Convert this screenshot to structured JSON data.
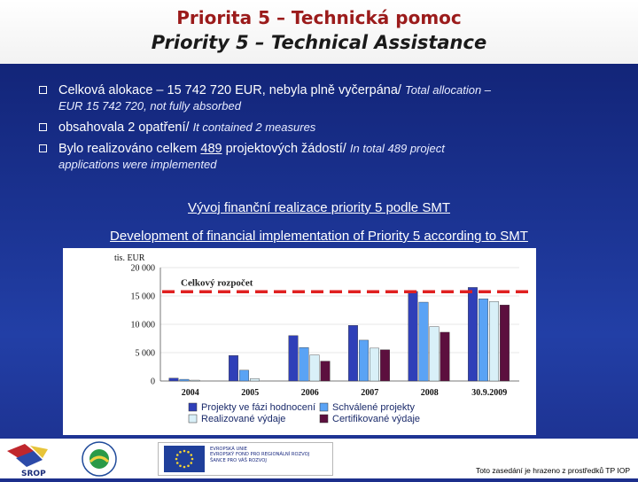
{
  "title": {
    "cz": "Priorita 5 – Technická pomoc",
    "en": "Priority 5 – Technical Assistance"
  },
  "bullets": [
    {
      "cz": "Celková alokace – 15 742 720 EUR, nebyla plně vyčerpána/",
      "en_a": "Total allocation –",
      "en_b": "EUR 15 742 720, not fully absorbed"
    },
    {
      "cz": "obsahovala 2 opatření/",
      "en": "It contained 2 measures"
    },
    {
      "cz_pre": "Bylo realizováno celkem ",
      "num": "489",
      "cz_post": " projektových žádostí/",
      "en_a": "In total 489 project",
      "en_b": "applications were implemented"
    }
  ],
  "chart_heading": {
    "cz": "Vývoj finanční realizace priority 5 podle SMT",
    "en": "Development of financial implementation of Priority 5 according to SMT"
  },
  "chart_data": {
    "type": "bar",
    "ylabel": "tis. EUR",
    "ylim": [
      0,
      20000
    ],
    "yticks": [
      "0",
      "5 000",
      "10 000",
      "15 000",
      "20 000"
    ],
    "categories": [
      "2004",
      "2005",
      "2006",
      "2007",
      "2008",
      "30.9.2009"
    ],
    "series": [
      {
        "name": "Projekty ve fázi hodnocení",
        "color": "#2f3fb8",
        "values": [
          500,
          4500,
          8000,
          9800,
          15800,
          16500
        ]
      },
      {
        "name": "Schválené projekty",
        "color": "#5aa3f5",
        "values": [
          300,
          1900,
          5900,
          7200,
          13900,
          14500
        ]
      },
      {
        "name": "Realizované výdaje",
        "color": "#d9f0f8",
        "values": [
          150,
          400,
          4600,
          5800,
          9600,
          14000
        ]
      },
      {
        "name": "Certifikované výdaje",
        "color": "#5c0f3e",
        "values": [
          0,
          0,
          3500,
          5500,
          8600,
          13400
        ]
      }
    ],
    "reference_line": {
      "label": "Celkový rozpočet",
      "value": 15742,
      "color": "#e02020"
    },
    "legend_position": "bottom"
  },
  "footer": {
    "logo_srop": "SROP",
    "logo_mmr": "MINISTERSTVO PRO MÍSTNÍ ROZVOJ",
    "eu_lines": [
      "EVROPSKÁ UNIE",
      "EVROPSKÝ FOND PRO REGIONÁLNÍ ROZVOJ",
      "ŠANCE PRO VÁŠ ROZVOJ"
    ],
    "note": "Toto zasedání je hrazeno z prostředků TP IOP"
  }
}
